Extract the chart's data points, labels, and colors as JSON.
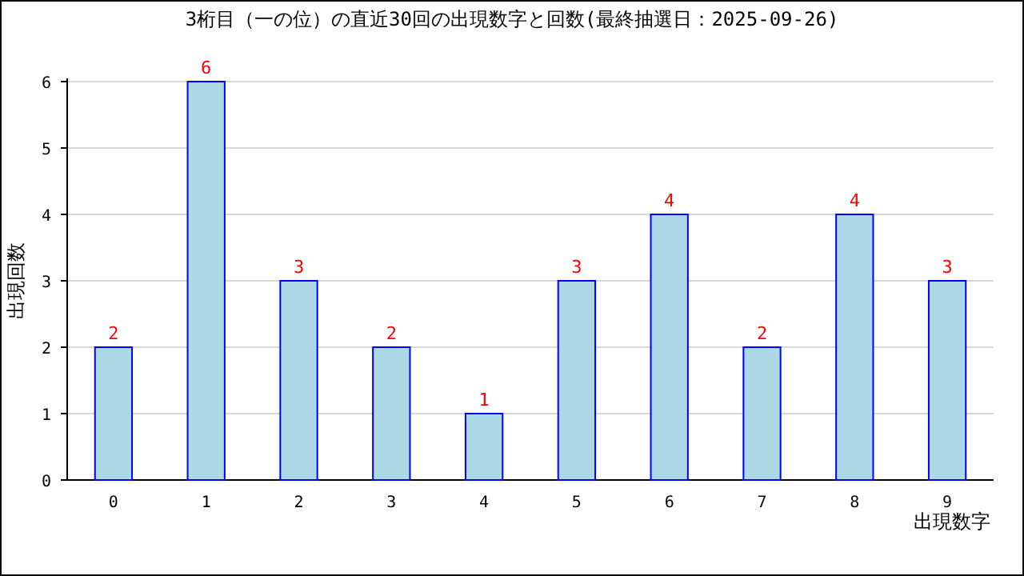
{
  "chart_data": {
    "type": "bar",
    "title": "3桁目（一の位）の直近30回の出現数字と回数(最終抽選日：2025-09-26)",
    "xlabel": "出現数字",
    "ylabel": "出現回数",
    "categories": [
      "0",
      "1",
      "2",
      "3",
      "4",
      "5",
      "6",
      "7",
      "8",
      "9"
    ],
    "values": [
      2,
      6,
      3,
      2,
      1,
      3,
      4,
      2,
      4,
      3
    ],
    "color": "#add8e6",
    "ylim": [
      0,
      6
    ],
    "yticks": [
      0,
      1,
      2,
      3,
      4,
      5,
      6
    ],
    "grid": "y",
    "data_labels": true
  }
}
